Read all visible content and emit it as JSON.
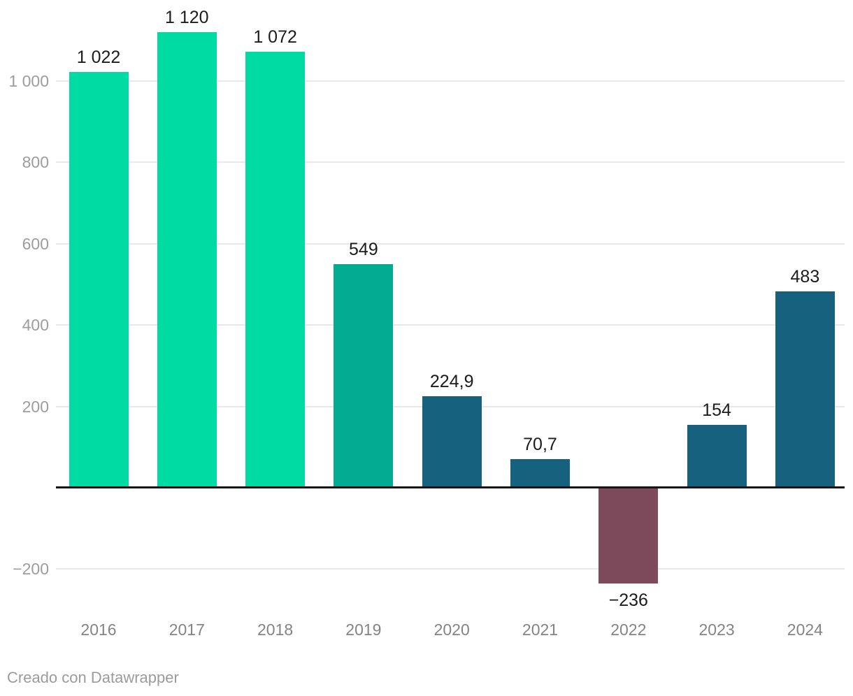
{
  "chart_data": {
    "type": "bar",
    "categories": [
      "2016",
      "2017",
      "2018",
      "2019",
      "2020",
      "2021",
      "2022",
      "2023",
      "2024"
    ],
    "values": [
      1022,
      1120,
      1072,
      549,
      224.9,
      70.7,
      -236,
      154,
      483
    ],
    "value_labels": [
      "1 022",
      "1 120",
      "1 072",
      "549",
      "224,9",
      "70,7",
      "−236",
      "154",
      "483"
    ],
    "bar_colors": [
      "#00dba4",
      "#00dba4",
      "#00dba4",
      "#04ab93",
      "#16617d",
      "#16617d",
      "#7d4a5b",
      "#16617d",
      "#16617d"
    ],
    "title": "",
    "xlabel": "",
    "ylabel": "",
    "ylim": [
      -280,
      1200
    ],
    "grid": true,
    "legend": false,
    "y_axis": {
      "ticks": [
        {
          "value": 1000,
          "label": "1 000"
        },
        {
          "value": 800,
          "label": "800"
        },
        {
          "value": 600,
          "label": "600"
        },
        {
          "value": 400,
          "label": "400"
        },
        {
          "value": 200,
          "label": "200"
        },
        {
          "value": -200,
          "label": "−200"
        }
      ],
      "zero_line": true
    }
  },
  "footer": {
    "credit": "Creado con Datawrapper"
  },
  "colors": {
    "green": "#00dba4",
    "teal": "#04ab93",
    "dark_blue": "#16617d",
    "negative_maroon": "#7d4a5b",
    "gridline": "#e8e8e8",
    "zero_line": "#151515",
    "value_label": "#1c1c1c",
    "category_label": "#848484",
    "axis_tick_label": "#9d9d9d",
    "credit_text": "#9b9b9b",
    "background": "#ffffff"
  }
}
